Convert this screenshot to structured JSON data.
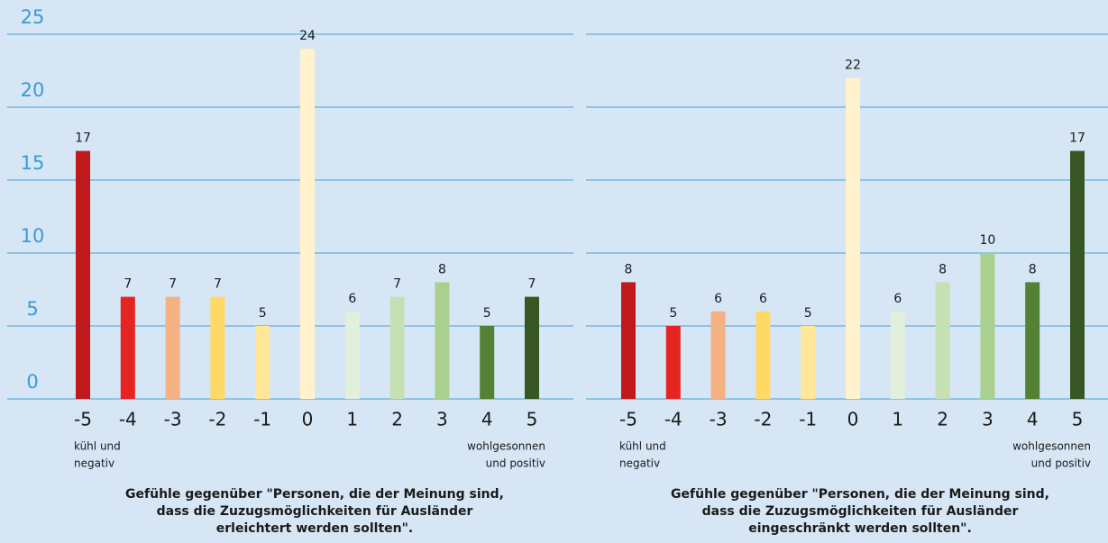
{
  "chart_data": [
    {
      "type": "bar",
      "categories": [
        "-5",
        "-4",
        "-3",
        "-2",
        "-1",
        "0",
        "1",
        "2",
        "3",
        "4",
        "5"
      ],
      "values": [
        17,
        7,
        7,
        7,
        5,
        24,
        6,
        7,
        8,
        5,
        7
      ],
      "colors": [
        "#c0191c",
        "#e52521",
        "#f4b183",
        "#ffd966",
        "#ffe699",
        "#fff2cc",
        "#e2efda",
        "#c6e0b4",
        "#a9d08e",
        "#548235",
        "#375623"
      ],
      "ylim": [
        0,
        25
      ],
      "yticks": [
        0,
        5,
        10,
        15,
        20,
        25
      ],
      "grid": true,
      "low_note": [
        "kühl und",
        "negativ"
      ],
      "high_note": [
        "wohlgesonnen",
        "und positiv"
      ],
      "caption": {
        "line1": "Gefühle gegenüber \"Personen, die der Meinung sind,",
        "line2": "dass die Zuzugsmöglichkeiten für Ausländer",
        "emph": "erleichtert",
        "rest": " werden sollten\"."
      }
    },
    {
      "type": "bar",
      "categories": [
        "-5",
        "-4",
        "-3",
        "-2",
        "-1",
        "0",
        "1",
        "2",
        "3",
        "4",
        "5"
      ],
      "values": [
        8,
        5,
        6,
        6,
        5,
        22,
        6,
        8,
        10,
        8,
        17
      ],
      "colors": [
        "#c0191c",
        "#e52521",
        "#f4b183",
        "#ffd966",
        "#ffe699",
        "#fff2cc",
        "#e2efda",
        "#c6e0b4",
        "#a9d08e",
        "#548235",
        "#375623"
      ],
      "ylim": [
        0,
        25
      ],
      "grid": true,
      "low_note": [
        "kühl und",
        "negativ"
      ],
      "high_note": [
        "wohlgesonnen",
        "und positiv"
      ],
      "caption": {
        "line1": "Gefühle gegenüber \"Personen, die der Meinung sind,",
        "line2": "dass die Zuzugsmöglichkeiten für Ausländer",
        "emph": "eingeschränkt",
        "rest": " werden sollten\"."
      }
    }
  ]
}
